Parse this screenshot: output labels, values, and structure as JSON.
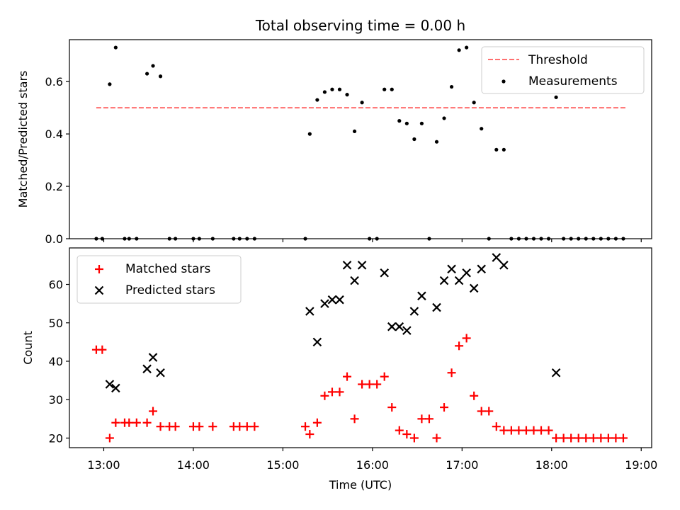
{
  "figure": {
    "title": "Total observing time = 0.00 h"
  },
  "chart_data": [
    {
      "type": "scatter",
      "panel": "top",
      "title": "Total observing time = 0.00 h",
      "xlabel": "",
      "ylabel": "Matched/Predicted stars",
      "xlim": [
        "12:37",
        "19:07"
      ],
      "ylim": [
        0,
        0.76
      ],
      "yticks": [
        0.0,
        0.2,
        0.4,
        0.6
      ],
      "ytick_labels": [
        "0.0",
        "0.2",
        "0.4",
        "0.6"
      ],
      "xticks": [
        "13:00",
        "14:00",
        "15:00",
        "16:00",
        "17:00",
        "18:00",
        "19:00"
      ],
      "show_xtick_labels": false,
      "legend": {
        "placement": "top-right",
        "entries": [
          "Threshold",
          "Measurements"
        ]
      },
      "threshold": {
        "name": "Threshold",
        "value": 0.5,
        "x_start": "12:55",
        "x_end": "18:50",
        "color": "#ff6f6f",
        "style": "dashed"
      },
      "series": [
        {
          "name": "Measurements",
          "marker": "dot",
          "color": "#000000",
          "points": [
            [
              "12:55",
              0.0
            ],
            [
              "12:59",
              0.0
            ],
            [
              "13:04",
              0.59
            ],
            [
              "13:08",
              0.73
            ],
            [
              "13:14",
              0.0
            ],
            [
              "13:17",
              0.0
            ],
            [
              "13:22",
              0.0
            ],
            [
              "13:29",
              0.63
            ],
            [
              "13:33",
              0.66
            ],
            [
              "13:38",
              0.62
            ],
            [
              "13:44",
              0.0
            ],
            [
              "13:48",
              0.0
            ],
            [
              "14:00",
              0.0
            ],
            [
              "14:04",
              0.0
            ],
            [
              "14:13",
              0.0
            ],
            [
              "14:27",
              0.0
            ],
            [
              "14:31",
              0.0
            ],
            [
              "14:36",
              0.0
            ],
            [
              "14:41",
              0.0
            ],
            [
              "15:15",
              0.0
            ],
            [
              "15:18",
              0.4
            ],
            [
              "15:23",
              0.53
            ],
            [
              "15:28",
              0.56
            ],
            [
              "15:33",
              0.57
            ],
            [
              "15:38",
              0.57
            ],
            [
              "15:43",
              0.55
            ],
            [
              "15:48",
              0.41
            ],
            [
              "15:53",
              0.52
            ],
            [
              "15:58",
              0.0
            ],
            [
              "16:03",
              0.0
            ],
            [
              "16:08",
              0.57
            ],
            [
              "16:13",
              0.57
            ],
            [
              "16:18",
              0.45
            ],
            [
              "16:23",
              0.44
            ],
            [
              "16:28",
              0.38
            ],
            [
              "16:33",
              0.44
            ],
            [
              "16:38",
              0.0
            ],
            [
              "16:43",
              0.37
            ],
            [
              "16:48",
              0.46
            ],
            [
              "16:53",
              0.58
            ],
            [
              "16:58",
              0.72
            ],
            [
              "17:03",
              0.73
            ],
            [
              "17:08",
              0.52
            ],
            [
              "17:13",
              0.42
            ],
            [
              "17:18",
              0.0
            ],
            [
              "17:23",
              0.34
            ],
            [
              "17:28",
              0.34
            ],
            [
              "17:33",
              0.0
            ],
            [
              "17:38",
              0.0
            ],
            [
              "17:43",
              0.0
            ],
            [
              "17:48",
              0.0
            ],
            [
              "17:53",
              0.0
            ],
            [
              "17:58",
              0.0
            ],
            [
              "18:03",
              0.54
            ],
            [
              "18:08",
              0.0
            ],
            [
              "18:13",
              0.0
            ],
            [
              "18:18",
              0.0
            ],
            [
              "18:23",
              0.0
            ],
            [
              "18:28",
              0.0
            ],
            [
              "18:33",
              0.0
            ],
            [
              "18:38",
              0.0
            ],
            [
              "18:43",
              0.0
            ],
            [
              "18:48",
              0.0
            ]
          ]
        }
      ]
    },
    {
      "type": "scatter",
      "panel": "bottom",
      "xlabel": "Time (UTC)",
      "ylabel": "Count",
      "xlim": [
        "12:37",
        "19:07"
      ],
      "ylim": [
        17.5,
        69.5
      ],
      "yticks": [
        20,
        30,
        40,
        50,
        60
      ],
      "ytick_labels": [
        "20",
        "30",
        "40",
        "50",
        "60"
      ],
      "xticks": [
        "13:00",
        "14:00",
        "15:00",
        "16:00",
        "17:00",
        "18:00",
        "19:00"
      ],
      "xtick_labels": [
        "13:00",
        "14:00",
        "15:00",
        "16:00",
        "17:00",
        "18:00",
        "19:00"
      ],
      "legend": {
        "placement": "top-left",
        "entries": [
          "Matched stars",
          "Predicted stars"
        ]
      },
      "series": [
        {
          "name": "Matched stars",
          "marker": "plus",
          "color": "#ff0000",
          "points": [
            [
              "12:55",
              43
            ],
            [
              "12:59",
              43
            ],
            [
              "13:04",
              20
            ],
            [
              "13:08",
              24
            ],
            [
              "13:14",
              24
            ],
            [
              "13:17",
              24
            ],
            [
              "13:22",
              24
            ],
            [
              "13:29",
              24
            ],
            [
              "13:33",
              27
            ],
            [
              "13:38",
              23
            ],
            [
              "13:44",
              23
            ],
            [
              "13:48",
              23
            ],
            [
              "14:00",
              23
            ],
            [
              "14:04",
              23
            ],
            [
              "14:13",
              23
            ],
            [
              "14:27",
              23
            ],
            [
              "14:31",
              23
            ],
            [
              "14:36",
              23
            ],
            [
              "14:41",
              23
            ],
            [
              "15:15",
              23
            ],
            [
              "15:18",
              21
            ],
            [
              "15:23",
              24
            ],
            [
              "15:28",
              31
            ],
            [
              "15:33",
              32
            ],
            [
              "15:38",
              32
            ],
            [
              "15:43",
              36
            ],
            [
              "15:48",
              25
            ],
            [
              "15:53",
              34
            ],
            [
              "15:58",
              34
            ],
            [
              "16:03",
              34
            ],
            [
              "16:08",
              36
            ],
            [
              "16:13",
              28
            ],
            [
              "16:18",
              22
            ],
            [
              "16:23",
              21
            ],
            [
              "16:28",
              20
            ],
            [
              "16:33",
              25
            ],
            [
              "16:38",
              25
            ],
            [
              "16:43",
              20
            ],
            [
              "16:48",
              28
            ],
            [
              "16:53",
              37
            ],
            [
              "16:58",
              44
            ],
            [
              "17:03",
              46
            ],
            [
              "17:08",
              31
            ],
            [
              "17:13",
              27
            ],
            [
              "17:18",
              27
            ],
            [
              "17:23",
              23
            ],
            [
              "17:28",
              22
            ],
            [
              "17:33",
              22
            ],
            [
              "17:38",
              22
            ],
            [
              "17:43",
              22
            ],
            [
              "17:48",
              22
            ],
            [
              "17:53",
              22
            ],
            [
              "17:58",
              22
            ],
            [
              "18:03",
              20
            ],
            [
              "18:08",
              20
            ],
            [
              "18:13",
              20
            ],
            [
              "18:18",
              20
            ],
            [
              "18:23",
              20
            ],
            [
              "18:28",
              20
            ],
            [
              "18:33",
              20
            ],
            [
              "18:38",
              20
            ],
            [
              "18:43",
              20
            ],
            [
              "18:48",
              20
            ]
          ]
        },
        {
          "name": "Predicted stars",
          "marker": "x",
          "color": "#000000",
          "points": [
            [
              "13:04",
              34
            ],
            [
              "13:08",
              33
            ],
            [
              "13:29",
              38
            ],
            [
              "13:33",
              41
            ],
            [
              "13:38",
              37
            ],
            [
              "15:18",
              53
            ],
            [
              "15:23",
              45
            ],
            [
              "15:28",
              55
            ],
            [
              "15:33",
              56
            ],
            [
              "15:38",
              56
            ],
            [
              "15:43",
              65
            ],
            [
              "15:48",
              61
            ],
            [
              "15:53",
              65
            ],
            [
              "16:08",
              63
            ],
            [
              "16:13",
              49
            ],
            [
              "16:18",
              49
            ],
            [
              "16:23",
              48
            ],
            [
              "16:28",
              53
            ],
            [
              "16:33",
              57
            ],
            [
              "16:43",
              54
            ],
            [
              "16:48",
              61
            ],
            [
              "16:53",
              64
            ],
            [
              "16:58",
              61
            ],
            [
              "17:03",
              63
            ],
            [
              "17:08",
              59
            ],
            [
              "17:13",
              64
            ],
            [
              "17:23",
              67
            ],
            [
              "17:28",
              65
            ],
            [
              "18:03",
              37
            ]
          ]
        }
      ]
    }
  ]
}
